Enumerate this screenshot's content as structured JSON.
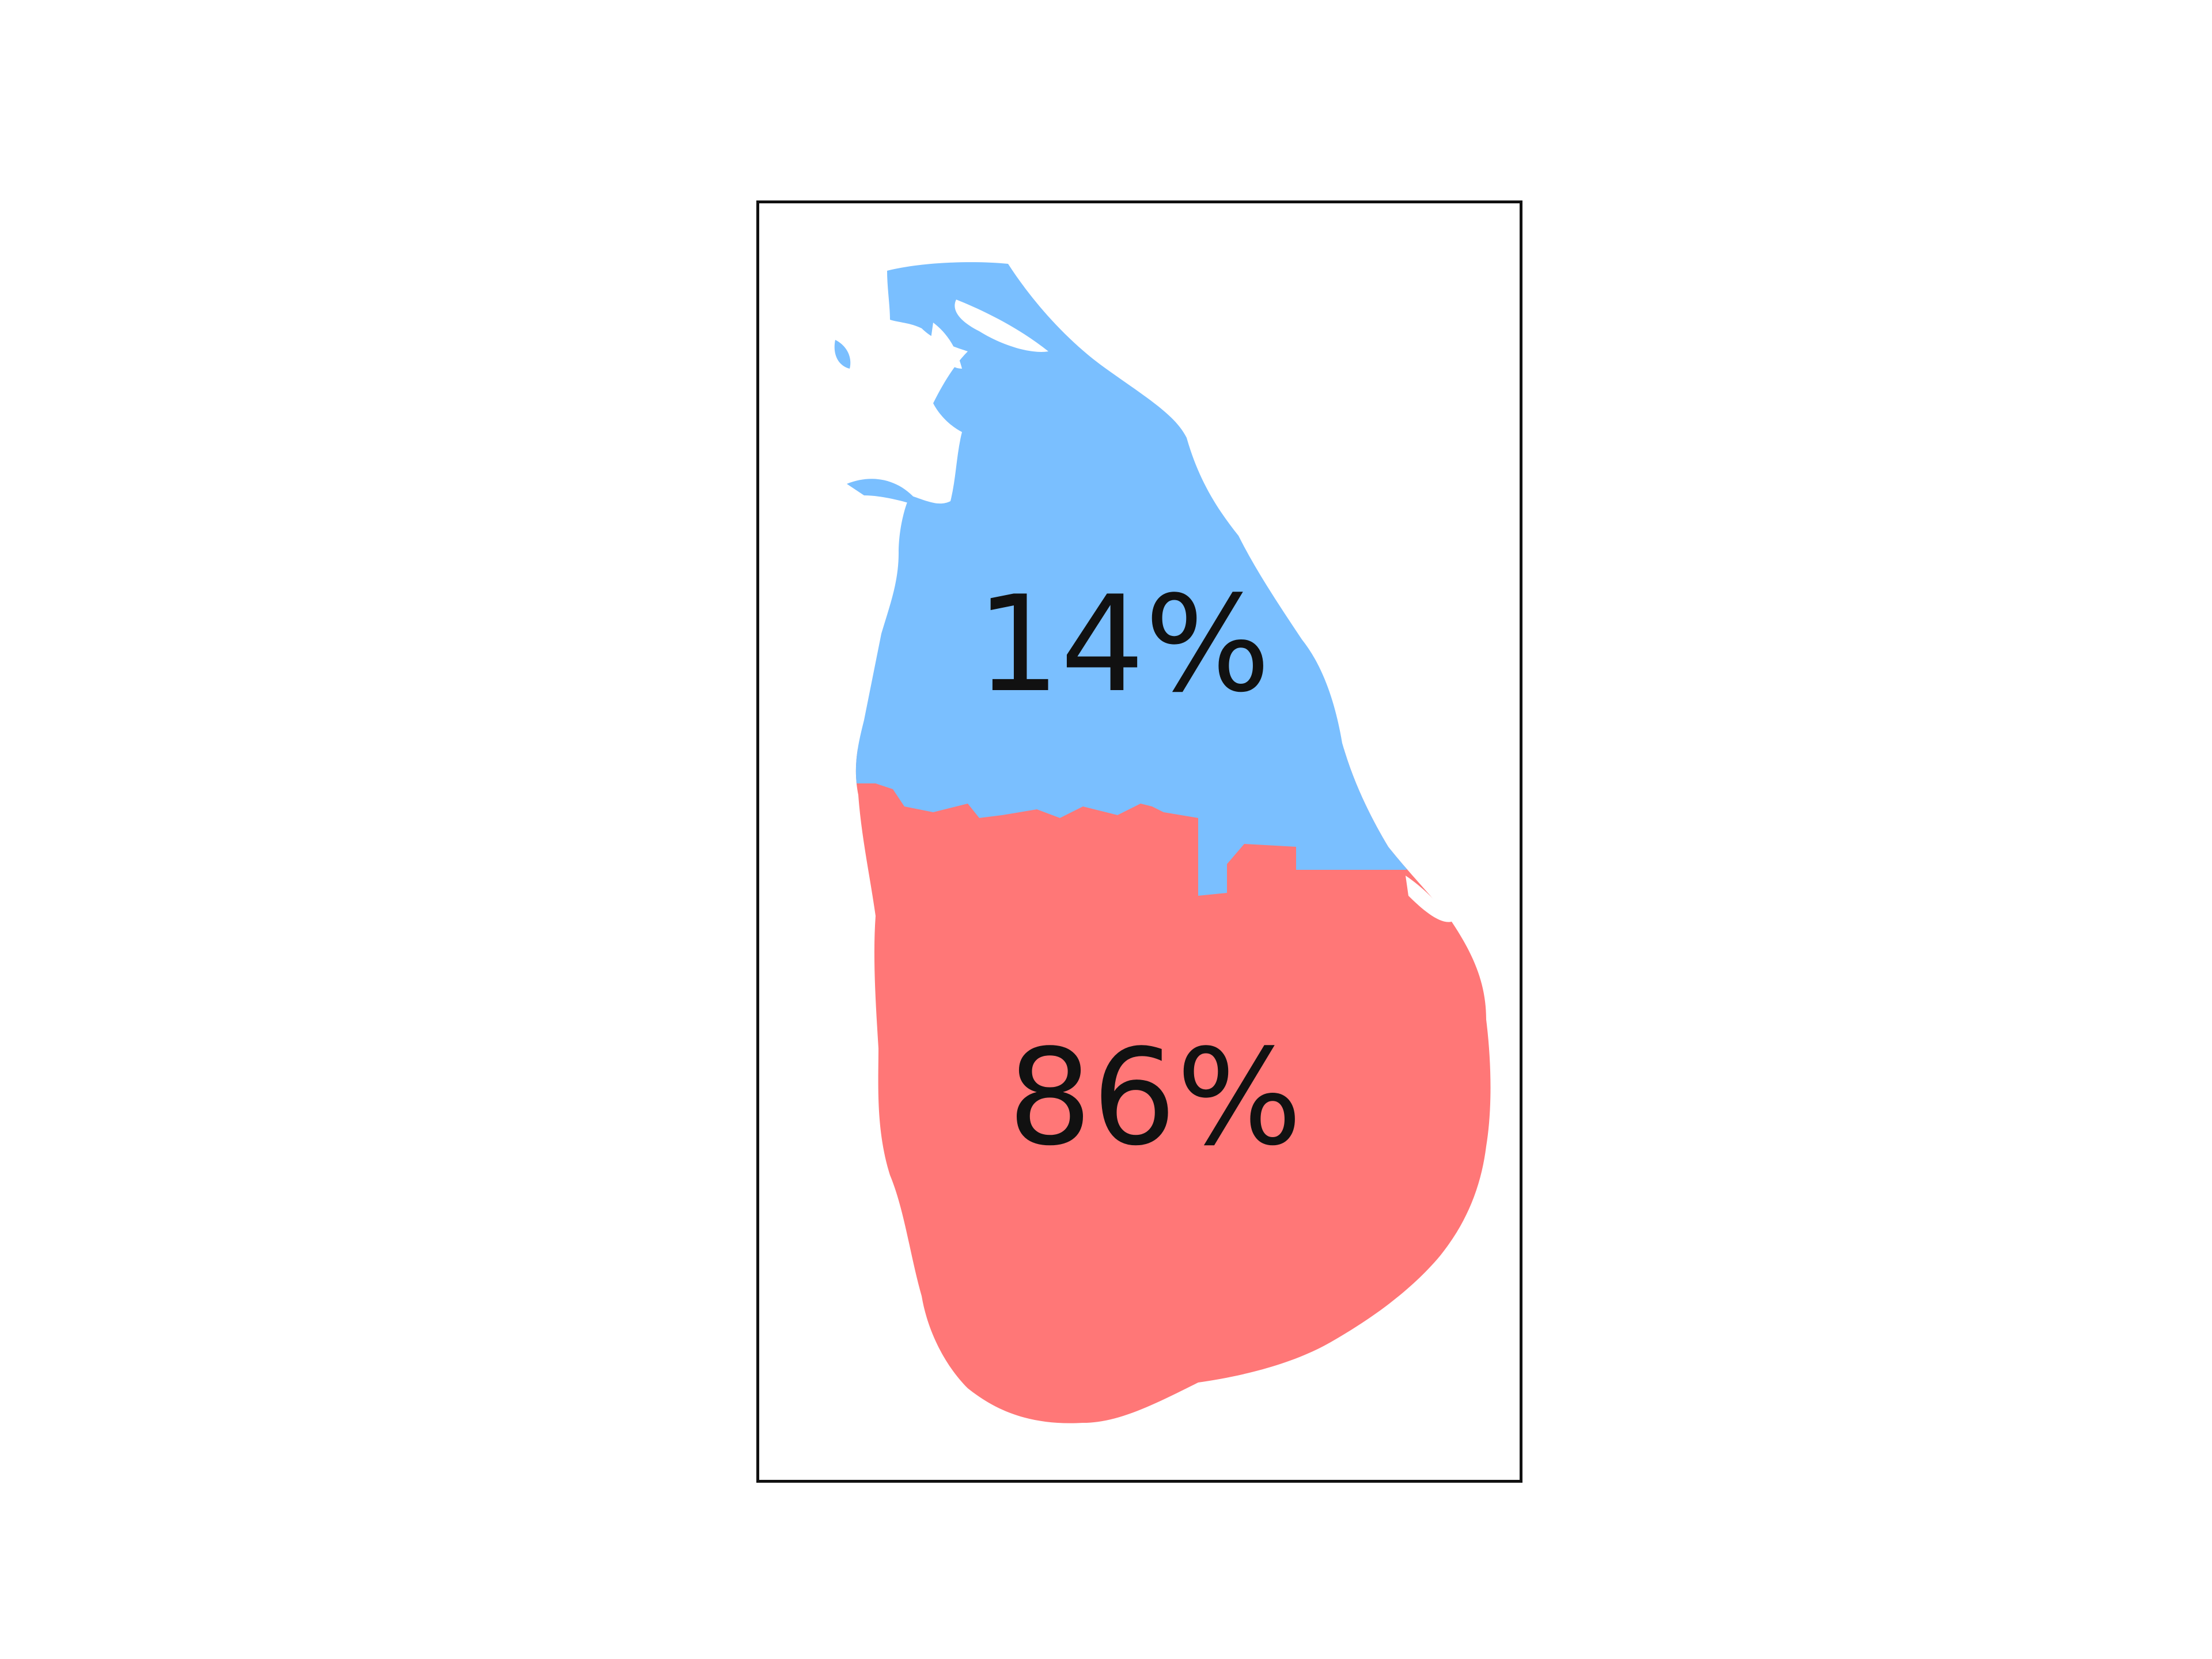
{
  "map": {
    "regions": [
      {
        "id": "north-east",
        "share": 14,
        "label": "14%",
        "color": "#7abfff"
      },
      {
        "id": "south-west",
        "share": 86,
        "label": "86%",
        "color": "#ff7777"
      }
    ],
    "frame_color": "#111111",
    "background": "#ffffff"
  }
}
